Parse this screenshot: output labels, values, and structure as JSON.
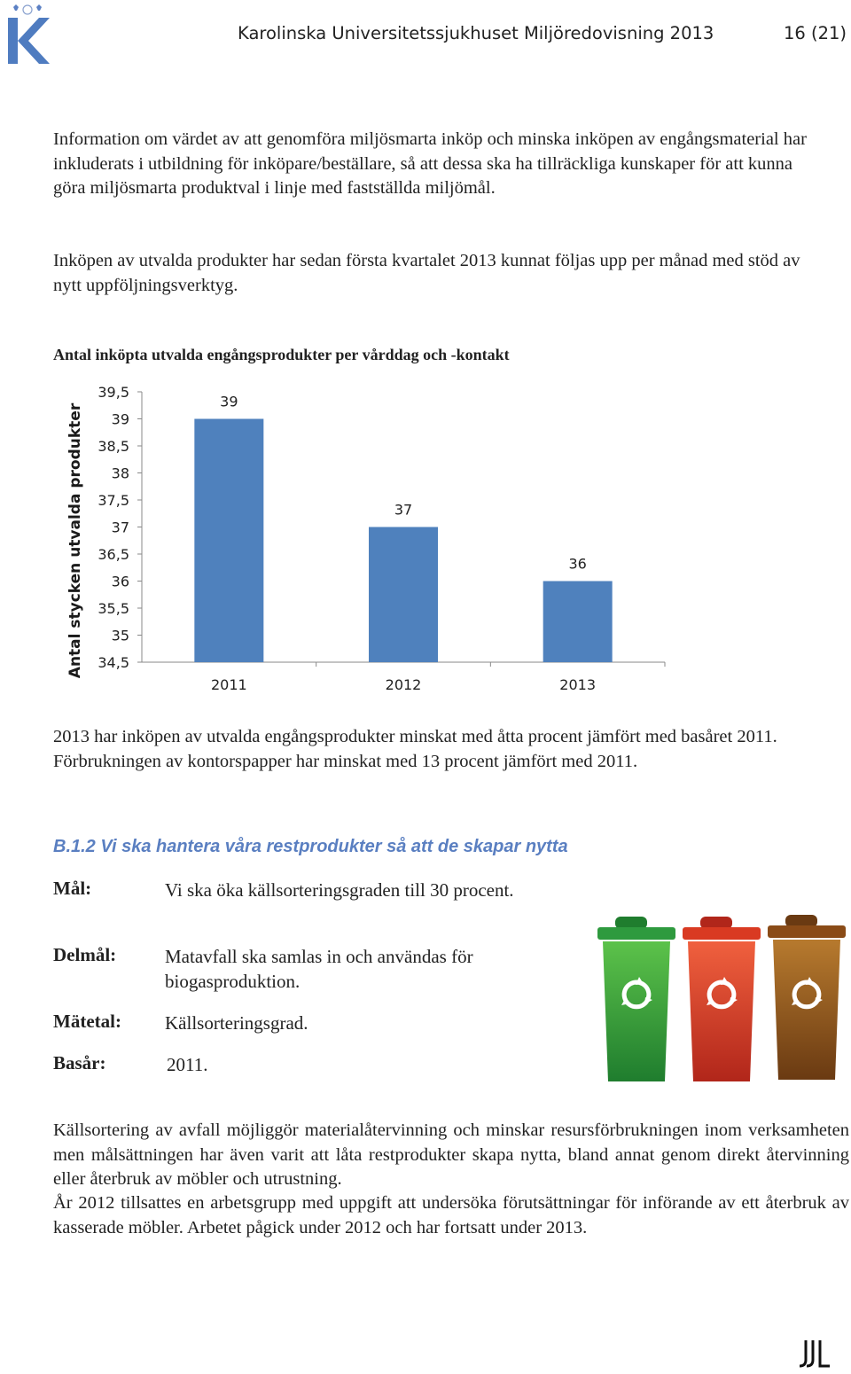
{
  "header": {
    "title": "Karolinska Universitetssjukhuset Miljöredovisning 2013",
    "page": "16 (21)"
  },
  "paragraphs": {
    "p1": "Information om värdet av att genomföra miljösmarta inköp och minska inköpen av engångsmaterial har inkluderats i utbildning för inköpare/beställare, så att dessa ska ha tillräckliga kunskaper för att kunna göra miljösmarta produktval i linje med fastställda miljömål.",
    "p2": "Inköpen av utvalda produkter har sedan första kvartalet 2013 kunnat följas upp per månad med stöd av nytt uppföljningsverktyg.",
    "p3": "2013 har inköpen av utvalda engångsprodukter minskat med åtta procent jämfört med basåret 2011. Förbrukningen av kontorspapper har minskat med 13 procent jämfört med 2011.",
    "p4": "Källsortering av avfall möjliggör materialåtervinning och minskar resursförbrukningen inom verksamheten men målsättningen har även varit att låta restprodukter skapa nytta, bland annat genom direkt återvinning eller återbruk av möbler och utrustning.",
    "p5": "År 2012 tillsattes en arbetsgrupp med uppgift att undersöka förutsättningar för införande av ett återbruk av kasserade möbler. Arbetet pågick under 2012 och har fortsatt under 2013."
  },
  "chart_data": {
    "type": "bar",
    "title": "Antal inköpta utvalda engångsprodukter per vårddag och -kontakt",
    "ylabel": "Antal stycken utvalda produkter",
    "xlabel": "",
    "categories": [
      "2011",
      "2012",
      "2013"
    ],
    "values": [
      39,
      37,
      36
    ],
    "data_labels": [
      "39",
      "37",
      "36"
    ],
    "ylim": [
      34.5,
      39.5
    ],
    "yticks": [
      "39,5",
      "39",
      "38,5",
      "38",
      "37,5",
      "37",
      "36,5",
      "36",
      "35,5",
      "35",
      "34,5"
    ],
    "grid": false,
    "legend": "none",
    "bar_color": "#4f81bd"
  },
  "section": {
    "heading": "B.1.2 Vi ska hantera våra restprodukter så att de skapar nytta",
    "goal_label": "Mål:",
    "goal_text": "Vi ska öka källsorteringsgraden till 30 procent.",
    "subgoal_label": "Delmål:",
    "subgoal_text": "Matavfall ska samlas in och användas för biogasproduktion.",
    "metric_label": "Mätetal:",
    "metric_text": "Källsorteringsgrad.",
    "base_label": "Basår:",
    "base_text": "2011."
  },
  "icons": {
    "logo": "karolinska-k-logo",
    "bins": [
      "recycle-bin-green-icon",
      "recycle-bin-red-icon",
      "recycle-bin-brown-icon"
    ],
    "bin_colors": [
      "#2e9a3e",
      "#d93a22",
      "#8a4b17"
    ],
    "footer": "footer-logo-icon"
  }
}
